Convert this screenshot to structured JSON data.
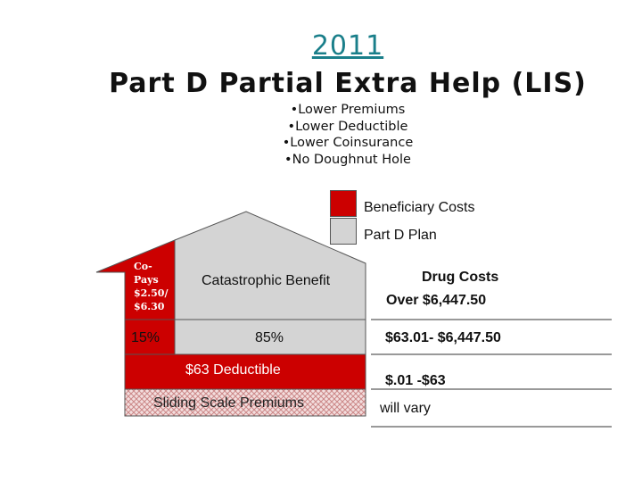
{
  "header": {
    "year": "2011",
    "title": "Part D Partial Extra Help (LIS)"
  },
  "bullets": [
    "•Lower Premiums",
    "•Lower Deductible",
    "•Lower Coinsurance",
    "•No Doughnut Hole"
  ],
  "legend": {
    "beneficiary": {
      "label": "Beneficiary Costs",
      "color": "#cc0000"
    },
    "plan": {
      "label": "Part D Plan",
      "color": "#d4d4d4"
    }
  },
  "house": {
    "copays": [
      "Co-",
      "Pays",
      "$2.50/",
      "$6.30"
    ],
    "catastrophic": "Catastrophic Benefit",
    "beneficiary_coinsurance": "15%",
    "plan_coinsurance": "85%",
    "deductible": "$63 Deductible",
    "premiums": "Sliding Scale Premiums"
  },
  "drug_costs": {
    "heading": "Drug Costs",
    "catastrophic": "Over $6,447.50",
    "coinsurance": "$63.01- $6,447.50",
    "deductible": "$.01 -$63",
    "premiums": "will vary"
  }
}
